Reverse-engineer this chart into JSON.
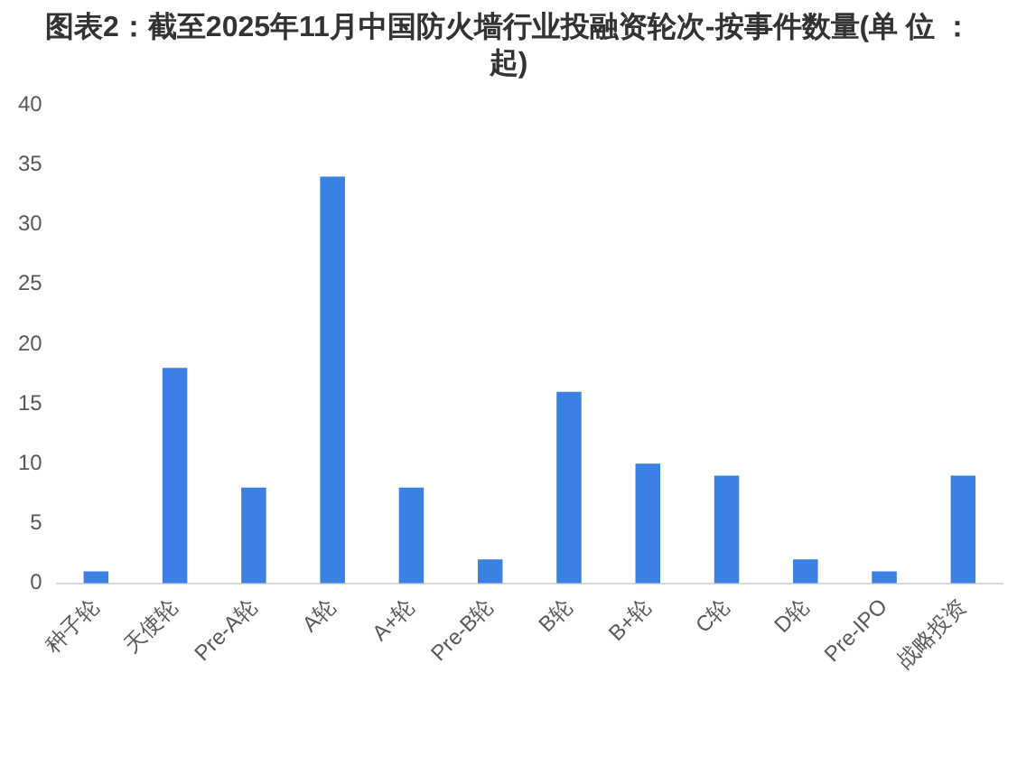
{
  "chart_data": {
    "type": "bar",
    "title": "图表2：截至2025年11月中国防火墙行业投融资轮次-按事件数量(单 位 ：起)",
    "categories": [
      "种子轮",
      "天使轮",
      "Pre-A轮",
      "A轮",
      "A+轮",
      "Pre-B轮",
      "B轮",
      "B+轮",
      "C轮",
      "D轮",
      "Pre-IPO",
      "战略投资"
    ],
    "values": [
      1,
      18,
      8,
      34,
      8,
      2,
      16,
      10,
      9,
      2,
      1,
      9
    ],
    "color": "#3b80e3",
    "ylim": [
      0,
      40
    ],
    "yticks": [
      0,
      5,
      10,
      15,
      20,
      25,
      30,
      35,
      40
    ],
    "grid": false
  }
}
